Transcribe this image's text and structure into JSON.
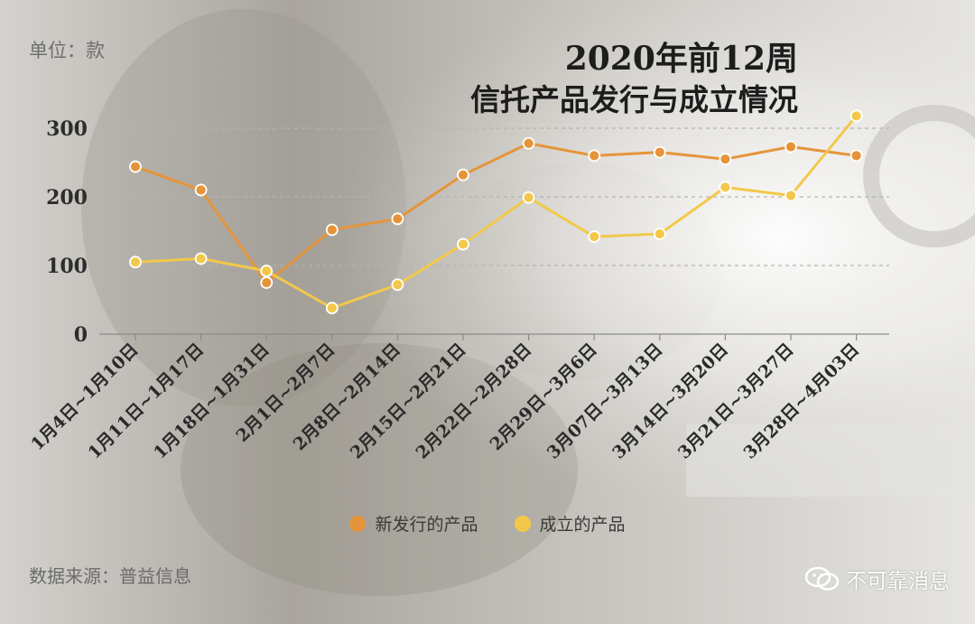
{
  "header": {
    "unit": "单位：款",
    "title_line1": "2020年前12周",
    "title_line2": "信托产品发行与成立情况"
  },
  "footer": {
    "source": "数据来源：普益信息",
    "watermark": "不可靠消息"
  },
  "chart_data": {
    "type": "line",
    "categories": [
      "1月4日~1月10日",
      "1月11日~1月17日",
      "1月18日~1月31日",
      "2月1日~2月7日",
      "2月8日~2月14日",
      "2月15日~2月21日",
      "2月22日~2月28日",
      "2月29日~3月6日",
      "3月07日~3月13日",
      "3月14日~3月20日",
      "3月21日~3月27日",
      "3月28日~4月03日"
    ],
    "series": [
      {
        "name": "新发行的产品",
        "color": "#e6943a",
        "values": [
          244,
          210,
          75,
          152,
          168,
          232,
          278,
          260,
          265,
          255,
          273,
          260
        ]
      },
      {
        "name": "成立的产品",
        "color": "#f3c84a",
        "values": [
          105,
          110,
          92,
          38,
          72,
          131,
          199,
          142,
          146,
          214,
          202,
          318
        ]
      }
    ],
    "yticks": [
      0,
      100,
      200,
      300
    ],
    "ylim": [
      0,
      300
    ],
    "xlabel": "",
    "ylabel": "",
    "grid": "horizontal-dashed",
    "legend_position": "bottom-center"
  }
}
